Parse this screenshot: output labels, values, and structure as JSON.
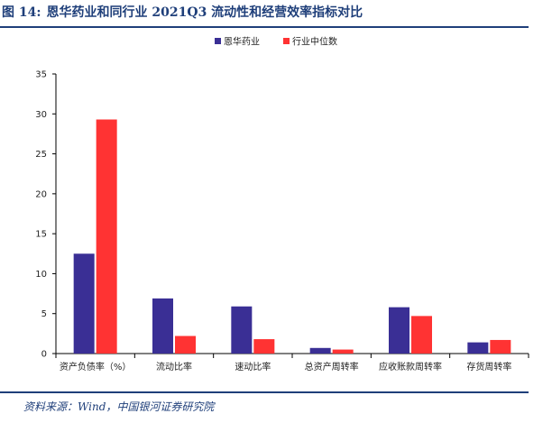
{
  "header": {
    "figure_number": "图 14:",
    "title": "恩华药业和同行业 2021Q3 流动性和经营效率指标对比"
  },
  "footer": {
    "source": "资料来源：Wind，中国银河证券研究院"
  },
  "colors": {
    "accent": "#1f3f7a",
    "series_1": "#3a2f95",
    "series_2": "#ff3333"
  },
  "chart_data": {
    "type": "bar",
    "categories": [
      "资产负债率（%）",
      "流动比率",
      "速动比率",
      "总资产周转率",
      "应收账款周转率",
      "存货周转率"
    ],
    "series": [
      {
        "name": "恩华药业",
        "values": [
          12.5,
          6.9,
          5.9,
          0.7,
          5.8,
          1.4
        ]
      },
      {
        "name": "行业中位数",
        "values": [
          29.3,
          2.2,
          1.8,
          0.5,
          4.7,
          1.7
        ]
      }
    ],
    "ylim": [
      0,
      35
    ],
    "yticks": [
      0,
      5,
      10,
      15,
      20,
      25,
      30,
      35
    ],
    "legend_position": "top-center",
    "grid": false
  }
}
